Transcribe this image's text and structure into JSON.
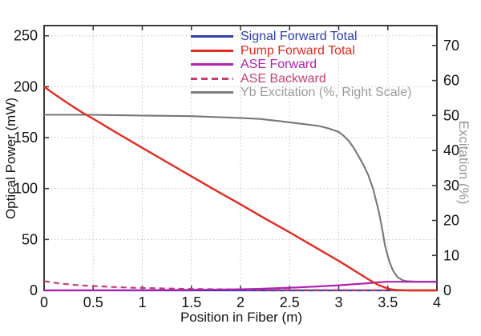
{
  "figure": {
    "background": "#ffffff",
    "frame_color": "#3b3b3b",
    "grid_color": "#c8c8c8",
    "tick_label_color": "#141414",
    "right_axis_label_color": "#969696"
  },
  "chart_data": {
    "type": "line",
    "title": "",
    "xlabel": "Position in Fiber (m)",
    "ylabel_left": "Optical Power (mW)",
    "ylabel_right": "Excitation (%)",
    "xlim": [
      0,
      4
    ],
    "ylim_left": [
      0,
      260
    ],
    "ylim_right": [
      0,
      75.7
    ],
    "grid": "dotted; vertical lines at x ticks, horizontal lines at left-axis ticks",
    "legend_position": "upper center-right, no frame",
    "x_ticks": {
      "values": [
        0,
        0.5,
        1,
        1.5,
        2,
        2.5,
        3,
        3.5,
        4
      ],
      "labels": [
        "0",
        "0.5",
        "1",
        "1.5",
        "2",
        "2.5",
        "3",
        "3.5",
        "4"
      ]
    },
    "y_ticks_left": {
      "values": [
        0,
        50,
        100,
        150,
        200,
        250
      ],
      "labels": [
        "0",
        "50",
        "100",
        "150",
        "200",
        "250"
      ]
    },
    "y_ticks_right": {
      "values": [
        0,
        10,
        20,
        30,
        40,
        50,
        60,
        70
      ],
      "labels": [
        "0",
        "10",
        "20",
        "30",
        "40",
        "50",
        "60",
        "70"
      ]
    },
    "series": [
      {
        "name": "Signal Forward Total",
        "axis": "left",
        "color": "#2e3fae",
        "style": "solid",
        "width": 2.2,
        "z": 1,
        "points": [
          [
            0,
            0
          ],
          [
            4,
            0
          ]
        ]
      },
      {
        "name": "Pump Forward Total",
        "axis": "left",
        "color": "#e02b21",
        "style": "solid",
        "width": 2.4,
        "z": 5,
        "points": [
          [
            0,
            200
          ],
          [
            0.1,
            193
          ],
          [
            0.2,
            186.5
          ],
          [
            0.3,
            180
          ],
          [
            0.4,
            174
          ],
          [
            0.5,
            168.5
          ],
          [
            0.75,
            154
          ],
          [
            1,
            140
          ],
          [
            1.25,
            126
          ],
          [
            1.5,
            112
          ],
          [
            1.75,
            98
          ],
          [
            2,
            84.5
          ],
          [
            2.25,
            70.5
          ],
          [
            2.5,
            57
          ],
          [
            2.75,
            43
          ],
          [
            3,
            29
          ],
          [
            3.1,
            23
          ],
          [
            3.2,
            17
          ],
          [
            3.3,
            11
          ],
          [
            3.4,
            5.5
          ],
          [
            3.5,
            1.8
          ],
          [
            3.55,
            0.8
          ],
          [
            3.6,
            0.3
          ],
          [
            3.7,
            0
          ],
          [
            4,
            0
          ]
        ]
      },
      {
        "name": "ASE Forward",
        "axis": "left",
        "color": "#b122b0",
        "style": "solid",
        "width": 2.2,
        "z": 4,
        "points": [
          [
            0,
            0
          ],
          [
            0.5,
            0.05
          ],
          [
            1,
            0.2
          ],
          [
            1.5,
            0.5
          ],
          [
            2,
            1.1
          ],
          [
            2.2,
            1.6
          ],
          [
            2.4,
            2.3
          ],
          [
            2.6,
            3
          ],
          [
            2.8,
            3.9
          ],
          [
            3,
            5
          ],
          [
            3.2,
            6.4
          ],
          [
            3.3,
            7.1
          ],
          [
            3.4,
            7.9
          ],
          [
            3.5,
            8.5
          ],
          [
            3.6,
            8.5
          ],
          [
            3.8,
            8.4
          ],
          [
            4,
            8.4
          ]
        ]
      },
      {
        "name": "ASE Backward",
        "axis": "left",
        "color": "#c64168",
        "style": "dashed",
        "width": 2.2,
        "z": 3,
        "points": [
          [
            0,
            9
          ],
          [
            0.1,
            7.6
          ],
          [
            0.2,
            6.4
          ],
          [
            0.3,
            5.5
          ],
          [
            0.4,
            4.8
          ],
          [
            0.5,
            4.3
          ],
          [
            0.7,
            3.4
          ],
          [
            0.9,
            2.7
          ],
          [
            1.1,
            2.2
          ],
          [
            1.4,
            1.6
          ],
          [
            1.7,
            1.2
          ],
          [
            2,
            0.9
          ],
          [
            2.5,
            0.5
          ],
          [
            3,
            0.3
          ],
          [
            3.5,
            0.15
          ],
          [
            4,
            0.1
          ]
        ]
      },
      {
        "name": "Yb Excitation (%, Right Scale)",
        "axis": "right",
        "color": "#777777",
        "style": "solid",
        "width": 2.1,
        "z": 2,
        "points": [
          [
            0,
            50.2
          ],
          [
            0.5,
            50.2
          ],
          [
            1,
            50
          ],
          [
            1.5,
            49.8
          ],
          [
            2,
            49.3
          ],
          [
            2.2,
            49
          ],
          [
            2.4,
            48.4
          ],
          [
            2.6,
            47.7
          ],
          [
            2.8,
            47
          ],
          [
            2.9,
            46.3
          ],
          [
            3,
            45.3
          ],
          [
            3.05,
            44.2
          ],
          [
            3.1,
            42.8
          ],
          [
            3.15,
            40.9
          ],
          [
            3.2,
            38.5
          ],
          [
            3.25,
            36
          ],
          [
            3.3,
            33
          ],
          [
            3.35,
            29
          ],
          [
            3.4,
            23.5
          ],
          [
            3.42,
            21
          ],
          [
            3.45,
            16.5
          ],
          [
            3.47,
            13
          ],
          [
            3.5,
            9.7
          ],
          [
            3.52,
            8
          ],
          [
            3.55,
            5.8
          ],
          [
            3.58,
            4.5
          ],
          [
            3.6,
            3.8
          ],
          [
            3.65,
            2.9
          ],
          [
            3.7,
            2.6
          ],
          [
            3.8,
            2.5
          ],
          [
            4,
            2.5
          ]
        ]
      }
    ],
    "legend": [
      {
        "label": "Signal Forward Total",
        "text_color": "#2e3fae",
        "line_color": "#2e3fae",
        "style": "solid"
      },
      {
        "label": "Pump Forward Total",
        "text_color": "#e02b21",
        "line_color": "#e02b21",
        "style": "solid"
      },
      {
        "label": "ASE Forward",
        "text_color": "#b122b0",
        "line_color": "#b122b0",
        "style": "solid"
      },
      {
        "label": "ASE Backward",
        "text_color": "#c64168",
        "line_color": "#c64168",
        "style": "dashed"
      },
      {
        "label": "Yb Excitation (%, Right Scale)",
        "text_color": "#9b9b9b",
        "line_color": "#7d7d7d",
        "style": "solid"
      }
    ]
  }
}
